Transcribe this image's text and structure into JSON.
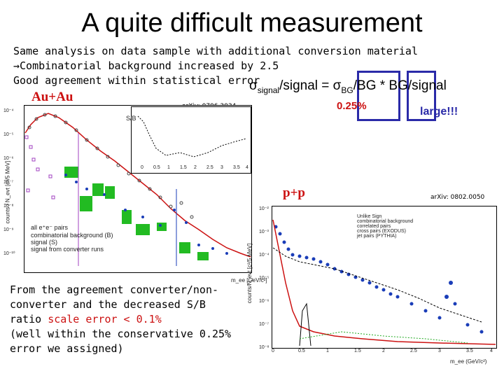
{
  "slide": {
    "title": "A quite difficult measurement",
    "bullets": [
      "Same analysis on data sample with additional conversion material",
      "Combinatorial background increased by 2.5",
      "Good agreement within statistical error"
    ],
    "bullet_arrow": "→",
    "formula": {
      "sigma": "σ",
      "sub_signal": "signal",
      "text_1": "/signal = ",
      "sub_bg": "BG",
      "text_2": "/BG * BG/signal"
    },
    "value_025": "0.25%",
    "value_large": "large!!!",
    "auau_label": "Au+Au",
    "pp_label": "p+p",
    "arxiv_left": "arXiv: 0706.3034",
    "arxiv_right": "arXiv: 0802.0050",
    "bottom_text": [
      "From the agreement converter/non-",
      "converter and the decreased S/B",
      "ratio ",
      "(well within the conservative 0.25%",
      "error we assigned)"
    ],
    "scale_error": "scale error < 0.1%",
    "left_plot": {
      "ylabel": "counts / N_evt [c²/5 MeV]",
      "xlabel": "m_ee [GeV/c²]",
      "y_ticks": [
        "10⁻⁴",
        "10⁻⁵",
        "10⁻⁶",
        "10⁻⁷",
        "10⁻⁸",
        "10⁻⁹",
        "10⁻¹⁰"
      ],
      "legend": [
        "all e⁺e⁻ pairs",
        "combinatorial background (B)",
        "signal (S)",
        "signal from converter runs"
      ],
      "inset": {
        "ylabel": "S/B",
        "y_ticks": [
          "10",
          "1",
          "10⁻¹",
          "10⁻²",
          "10⁻³"
        ],
        "x_ticks": [
          "0",
          "0.5",
          "1",
          "1.5",
          "2",
          "2.5",
          "3",
          "3.5",
          "4"
        ],
        "xlabel": "m_ee [GeV/c²]"
      }
    },
    "right_plot": {
      "ylabel": "counts/N_evt [c²/5 MeV]",
      "xlabel": "m_ee (GeV/c²)",
      "y_ticks": [
        "10⁻²",
        "10⁻³",
        "10⁻⁴",
        "10⁻⁵",
        "10⁻⁶",
        "10⁻⁷",
        "10⁻⁸"
      ],
      "x_ticks": [
        "0",
        "0.5",
        "1",
        "1.5",
        "2",
        "2.5",
        "3",
        "3.5",
        "4"
      ],
      "legend": [
        "Unlike Sign",
        "combinatorial background",
        "correlated pairs",
        "cross pairs (EXODUS)",
        "jet pairs (PYTHIA)"
      ]
    },
    "colors": {
      "accent_red": "#cc1111",
      "box_blue": "#2a2aa8"
    }
  }
}
